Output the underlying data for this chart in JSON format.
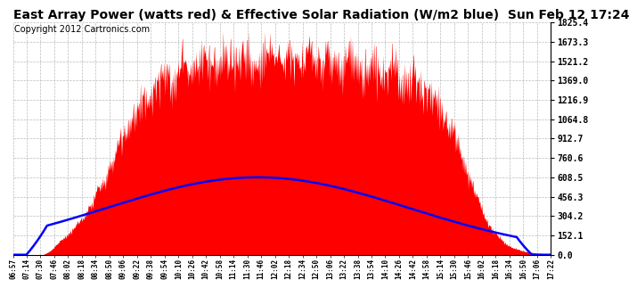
{
  "title": "East Array Power (watts red) & Effective Solar Radiation (W/m2 blue)  Sun Feb 12 17:24",
  "copyright": "Copyright 2012 Cartronics.com",
  "y_right_ticks": [
    0.0,
    152.1,
    304.2,
    456.3,
    608.5,
    760.6,
    912.7,
    1064.8,
    1216.9,
    1369.0,
    1521.2,
    1673.3,
    1825.4
  ],
  "x_labels": [
    "06:57",
    "07:14",
    "07:30",
    "07:46",
    "08:02",
    "08:18",
    "08:34",
    "08:50",
    "09:06",
    "09:22",
    "09:38",
    "09:54",
    "10:10",
    "10:26",
    "10:42",
    "10:58",
    "11:14",
    "11:30",
    "11:46",
    "12:02",
    "12:18",
    "12:34",
    "12:50",
    "13:06",
    "13:22",
    "13:38",
    "13:54",
    "14:10",
    "14:26",
    "14:42",
    "14:58",
    "15:14",
    "15:30",
    "15:46",
    "16:02",
    "16:18",
    "16:34",
    "16:50",
    "17:06",
    "17:22"
  ],
  "y_max": 1825.4,
  "bg_color": "#ffffff",
  "fill_color": "#ff0000",
  "line_color": "#0000ff",
  "grid_color": "#bbbbbb",
  "title_fontsize": 10,
  "copyright_fontsize": 7
}
